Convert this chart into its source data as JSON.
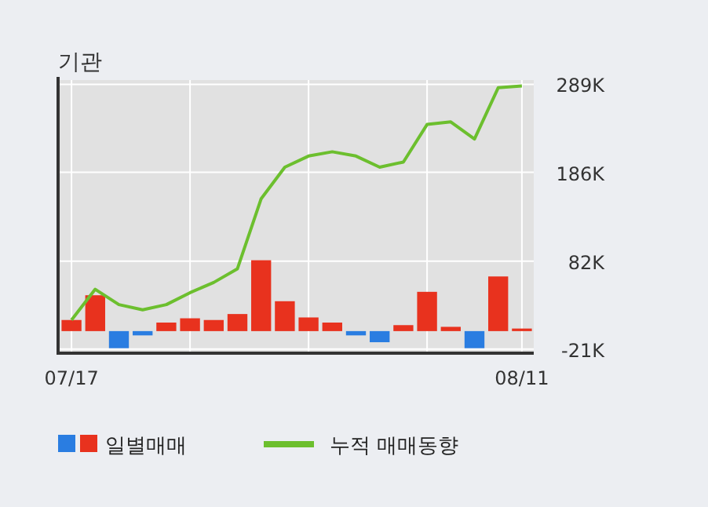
{
  "chart_data": {
    "type": "bar",
    "title": "기관",
    "categories": [
      "07/17",
      null,
      null,
      null,
      null,
      null,
      null,
      null,
      null,
      null,
      null,
      null,
      null,
      null,
      null,
      null,
      null,
      null,
      null,
      "08/11"
    ],
    "series": [
      {
        "name": "일별매매",
        "colors": [
          "#e8321e",
          "#e8321e",
          "#2a7de1",
          "#2a7de1",
          "#e8321e",
          "#e8321e",
          "#e8321e",
          "#e8321e",
          "#e8321e",
          "#e8321e",
          "#e8321e",
          "#e8321e",
          "#2a7de1",
          "#2a7de1",
          "#e8321e",
          "#e8321e",
          "#e8321e",
          "#2a7de1",
          "#e8321e",
          "#e8321e"
        ],
        "values": [
          13,
          42,
          -20,
          -5,
          10,
          15,
          13,
          20,
          83,
          35,
          16,
          10,
          -5,
          -13,
          7,
          46,
          5,
          -20,
          64,
          3
        ]
      },
      {
        "name": "누적 매매동향",
        "type": "line",
        "color": "#6cbf2e",
        "values": [
          13,
          49,
          31,
          25,
          31,
          45,
          57,
          73,
          155,
          192,
          205,
          210,
          205,
          192,
          198,
          242,
          245,
          225,
          285,
          287
        ]
      }
    ],
    "ylim": [
      -24,
      294
    ],
    "yticks": [
      {
        "value": -21,
        "label": "-21K"
      },
      {
        "value": 82,
        "label": "82K"
      },
      {
        "value": 186,
        "label": "186K"
      },
      {
        "value": 289,
        "label": "289K"
      }
    ],
    "grid": true,
    "legend": "bottom"
  }
}
